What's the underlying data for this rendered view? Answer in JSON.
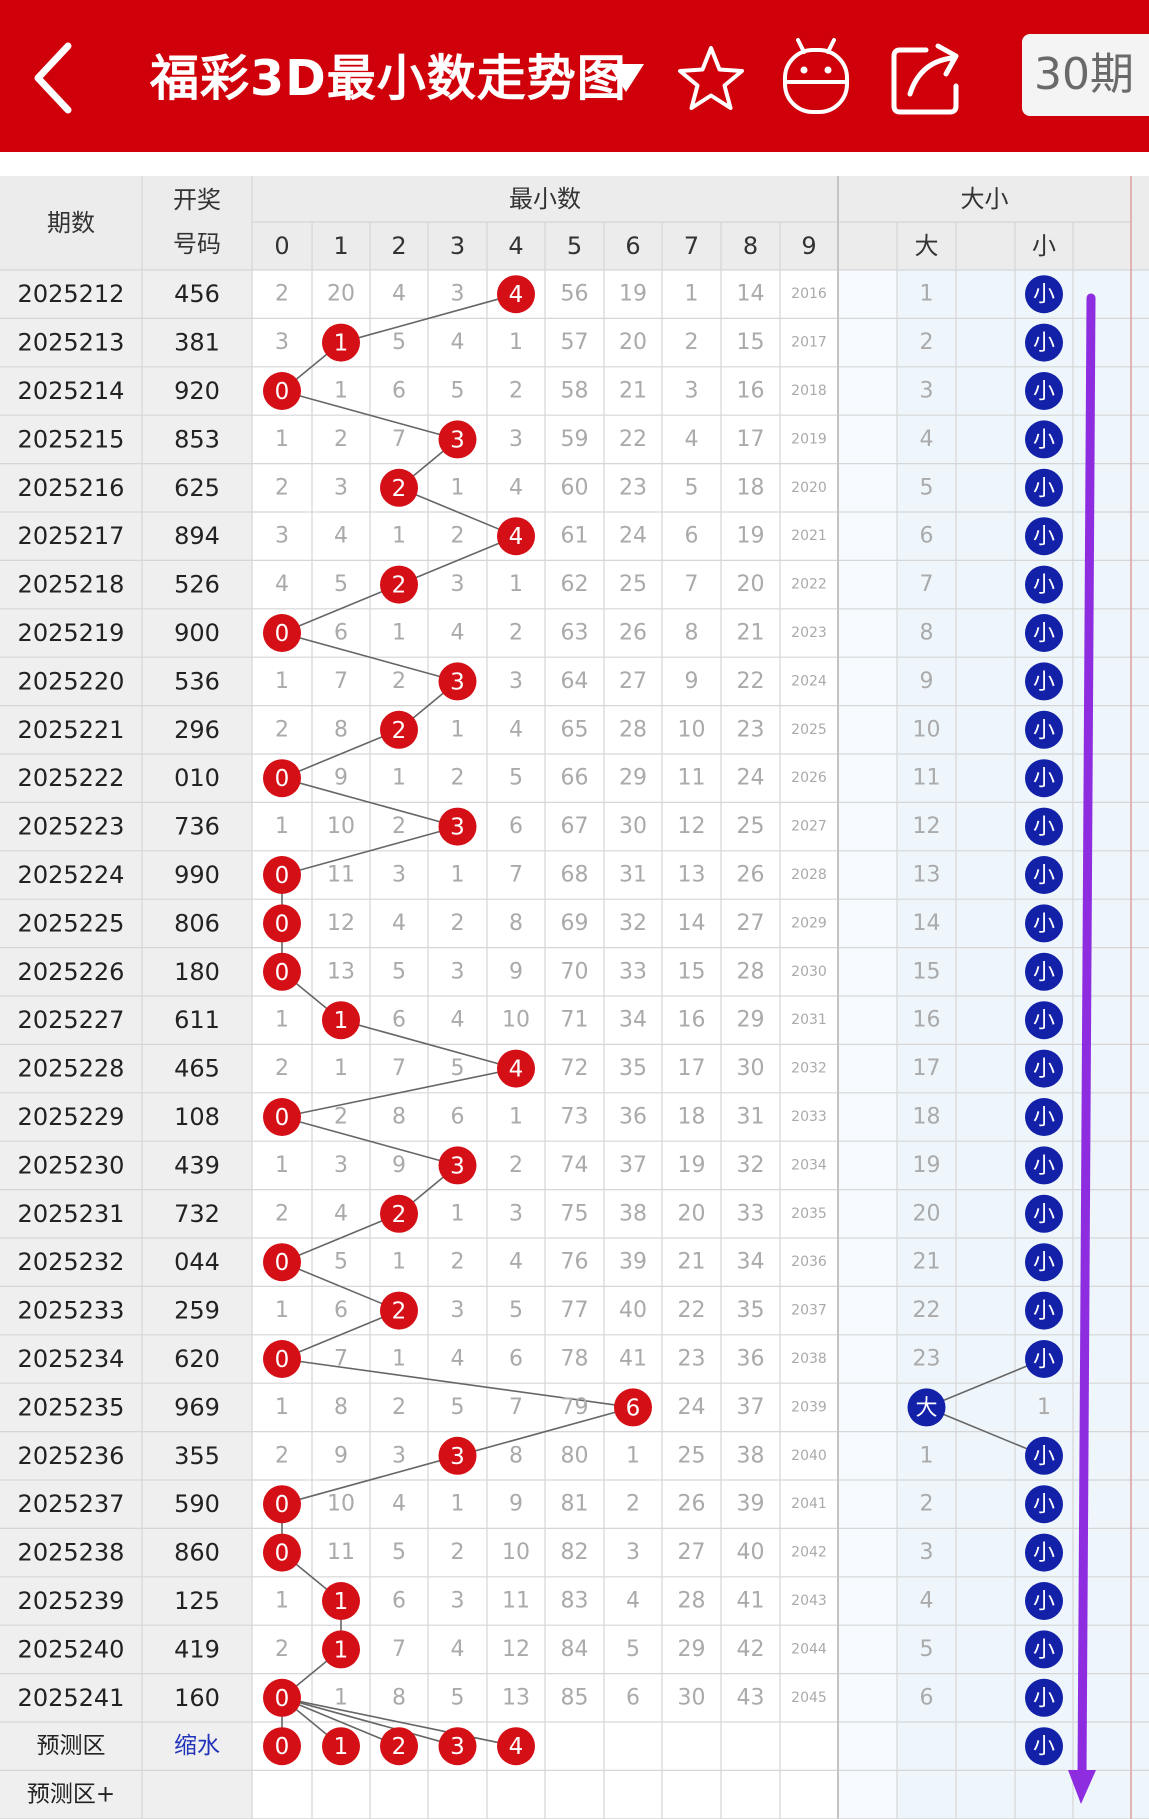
{
  "header": {
    "title": "福彩3D最小数走势图",
    "period_button": "30期",
    "icons": [
      "back-arrow-icon",
      "dropdown-triangle-icon",
      "star-icon",
      "robot-icon",
      "share-icon"
    ],
    "bg_color": "#d0000b"
  },
  "table": {
    "head_issue": "期数",
    "head_draw_line1": "开奖",
    "head_draw_line2": "号码",
    "group_min": "最小数",
    "group_size": "大小",
    "digits": [
      "0",
      "1",
      "2",
      "3",
      "4",
      "5",
      "6",
      "7",
      "8",
      "9"
    ],
    "size_cols": [
      "大",
      "小"
    ],
    "forecast_label": "预测区",
    "forecast_label2": "预测区+",
    "shrink_label": "缩水",
    "forecast_digits": [
      0,
      1,
      2,
      3,
      4
    ],
    "forecast_size": "小",
    "colors": {
      "red_ball": "#d50f16",
      "blue_ball": "#1221a8",
      "arrow": "#8e2ce0",
      "miss_text": "#aaaaaa"
    }
  },
  "rows": [
    {
      "issue": "2025212",
      "draw": "456",
      "min": 4,
      "miss": [
        "2",
        "20",
        "4",
        "3",
        "4",
        "56",
        "19",
        "1",
        "14",
        "2016"
      ],
      "size": "小",
      "size_miss": [
        "1",
        ""
      ]
    },
    {
      "issue": "2025213",
      "draw": "381",
      "min": 1,
      "miss": [
        "3",
        "1",
        "5",
        "4",
        "1",
        "57",
        "20",
        "2",
        "15",
        "2017"
      ],
      "size": "小",
      "size_miss": [
        "2",
        ""
      ]
    },
    {
      "issue": "2025214",
      "draw": "920",
      "min": 0,
      "miss": [
        "0",
        "1",
        "6",
        "5",
        "2",
        "58",
        "21",
        "3",
        "16",
        "2018"
      ],
      "size": "小",
      "size_miss": [
        "3",
        ""
      ]
    },
    {
      "issue": "2025215",
      "draw": "853",
      "min": 3,
      "miss": [
        "1",
        "2",
        "7",
        "3",
        "3",
        "59",
        "22",
        "4",
        "17",
        "2019"
      ],
      "size": "小",
      "size_miss": [
        "4",
        ""
      ]
    },
    {
      "issue": "2025216",
      "draw": "625",
      "min": 2,
      "miss": [
        "2",
        "3",
        "2",
        "1",
        "4",
        "60",
        "23",
        "5",
        "18",
        "2020"
      ],
      "size": "小",
      "size_miss": [
        "5",
        ""
      ]
    },
    {
      "issue": "2025217",
      "draw": "894",
      "min": 4,
      "miss": [
        "3",
        "4",
        "1",
        "2",
        "4",
        "61",
        "24",
        "6",
        "19",
        "2021"
      ],
      "size": "小",
      "size_miss": [
        "6",
        ""
      ]
    },
    {
      "issue": "2025218",
      "draw": "526",
      "min": 2,
      "miss": [
        "4",
        "5",
        "2",
        "3",
        "1",
        "62",
        "25",
        "7",
        "20",
        "2022"
      ],
      "size": "小",
      "size_miss": [
        "7",
        ""
      ]
    },
    {
      "issue": "2025219",
      "draw": "900",
      "min": 0,
      "miss": [
        "0",
        "6",
        "1",
        "4",
        "2",
        "63",
        "26",
        "8",
        "21",
        "2023"
      ],
      "size": "小",
      "size_miss": [
        "8",
        ""
      ]
    },
    {
      "issue": "2025220",
      "draw": "536",
      "min": 3,
      "miss": [
        "1",
        "7",
        "2",
        "3",
        "3",
        "64",
        "27",
        "9",
        "22",
        "2024"
      ],
      "size": "小",
      "size_miss": [
        "9",
        ""
      ]
    },
    {
      "issue": "2025221",
      "draw": "296",
      "min": 2,
      "miss": [
        "2",
        "8",
        "2",
        "1",
        "4",
        "65",
        "28",
        "10",
        "23",
        "2025"
      ],
      "size": "小",
      "size_miss": [
        "10",
        ""
      ]
    },
    {
      "issue": "2025222",
      "draw": "010",
      "min": 0,
      "miss": [
        "0",
        "9",
        "1",
        "2",
        "5",
        "66",
        "29",
        "11",
        "24",
        "2026"
      ],
      "size": "小",
      "size_miss": [
        "11",
        ""
      ]
    },
    {
      "issue": "2025223",
      "draw": "736",
      "min": 3,
      "miss": [
        "1",
        "10",
        "2",
        "3",
        "6",
        "67",
        "30",
        "12",
        "25",
        "2027"
      ],
      "size": "小",
      "size_miss": [
        "12",
        ""
      ]
    },
    {
      "issue": "2025224",
      "draw": "990",
      "min": 0,
      "miss": [
        "0",
        "11",
        "3",
        "1",
        "7",
        "68",
        "31",
        "13",
        "26",
        "2028"
      ],
      "size": "小",
      "size_miss": [
        "13",
        ""
      ]
    },
    {
      "issue": "2025225",
      "draw": "806",
      "min": 0,
      "miss": [
        "0",
        "12",
        "4",
        "2",
        "8",
        "69",
        "32",
        "14",
        "27",
        "2029"
      ],
      "size": "小",
      "size_miss": [
        "14",
        ""
      ]
    },
    {
      "issue": "2025226",
      "draw": "180",
      "min": 0,
      "miss": [
        "0",
        "13",
        "5",
        "3",
        "9",
        "70",
        "33",
        "15",
        "28",
        "2030"
      ],
      "size": "小",
      "size_miss": [
        "15",
        ""
      ]
    },
    {
      "issue": "2025227",
      "draw": "611",
      "min": 1,
      "miss": [
        "1",
        "1",
        "6",
        "4",
        "10",
        "71",
        "34",
        "16",
        "29",
        "2031"
      ],
      "size": "小",
      "size_miss": [
        "16",
        ""
      ]
    },
    {
      "issue": "2025228",
      "draw": "465",
      "min": 4,
      "miss": [
        "2",
        "1",
        "7",
        "5",
        "4",
        "72",
        "35",
        "17",
        "30",
        "2032"
      ],
      "size": "小",
      "size_miss": [
        "17",
        ""
      ]
    },
    {
      "issue": "2025229",
      "draw": "108",
      "min": 0,
      "miss": [
        "0",
        "2",
        "8",
        "6",
        "1",
        "73",
        "36",
        "18",
        "31",
        "2033"
      ],
      "size": "小",
      "size_miss": [
        "18",
        ""
      ]
    },
    {
      "issue": "2025230",
      "draw": "439",
      "min": 3,
      "miss": [
        "1",
        "3",
        "9",
        "3",
        "2",
        "74",
        "37",
        "19",
        "32",
        "2034"
      ],
      "size": "小",
      "size_miss": [
        "19",
        ""
      ]
    },
    {
      "issue": "2025231",
      "draw": "732",
      "min": 2,
      "miss": [
        "2",
        "4",
        "2",
        "1",
        "3",
        "75",
        "38",
        "20",
        "33",
        "2035"
      ],
      "size": "小",
      "size_miss": [
        "20",
        ""
      ]
    },
    {
      "issue": "2025232",
      "draw": "044",
      "min": 0,
      "miss": [
        "0",
        "5",
        "1",
        "2",
        "4",
        "76",
        "39",
        "21",
        "34",
        "2036"
      ],
      "size": "小",
      "size_miss": [
        "21",
        ""
      ]
    },
    {
      "issue": "2025233",
      "draw": "259",
      "min": 2,
      "miss": [
        "1",
        "6",
        "2",
        "3",
        "5",
        "77",
        "40",
        "22",
        "35",
        "2037"
      ],
      "size": "小",
      "size_miss": [
        "22",
        ""
      ]
    },
    {
      "issue": "2025234",
      "draw": "620",
      "min": 0,
      "miss": [
        "0",
        "7",
        "1",
        "4",
        "6",
        "78",
        "41",
        "23",
        "36",
        "2038"
      ],
      "size": "小",
      "size_miss": [
        "23",
        ""
      ]
    },
    {
      "issue": "2025235",
      "draw": "969",
      "min": 6,
      "miss": [
        "1",
        "8",
        "2",
        "5",
        "7",
        "79",
        "6",
        "24",
        "37",
        "2039"
      ],
      "size": "大",
      "size_miss": [
        "",
        "1"
      ]
    },
    {
      "issue": "2025236",
      "draw": "355",
      "min": 3,
      "miss": [
        "2",
        "9",
        "3",
        "3",
        "8",
        "80",
        "1",
        "25",
        "38",
        "2040"
      ],
      "size": "小",
      "size_miss": [
        "1",
        ""
      ]
    },
    {
      "issue": "2025237",
      "draw": "590",
      "min": 0,
      "miss": [
        "0",
        "10",
        "4",
        "1",
        "9",
        "81",
        "2",
        "26",
        "39",
        "2041"
      ],
      "size": "小",
      "size_miss": [
        "2",
        ""
      ]
    },
    {
      "issue": "2025238",
      "draw": "860",
      "min": 0,
      "miss": [
        "0",
        "11",
        "5",
        "2",
        "10",
        "82",
        "3",
        "27",
        "40",
        "2042"
      ],
      "size": "小",
      "size_miss": [
        "3",
        ""
      ]
    },
    {
      "issue": "2025239",
      "draw": "125",
      "min": 1,
      "miss": [
        "1",
        "1",
        "6",
        "3",
        "11",
        "83",
        "4",
        "28",
        "41",
        "2043"
      ],
      "size": "小",
      "size_miss": [
        "4",
        ""
      ]
    },
    {
      "issue": "2025240",
      "draw": "419",
      "min": 1,
      "miss": [
        "2",
        "1",
        "7",
        "4",
        "12",
        "84",
        "5",
        "29",
        "42",
        "2044"
      ],
      "size": "小",
      "size_miss": [
        "5",
        ""
      ]
    },
    {
      "issue": "2025241",
      "draw": "160",
      "min": 0,
      "miss": [
        "0",
        "1",
        "8",
        "5",
        "13",
        "85",
        "6",
        "30",
        "43",
        "2045"
      ],
      "size": "小",
      "size_miss": [
        "6",
        ""
      ]
    }
  ]
}
